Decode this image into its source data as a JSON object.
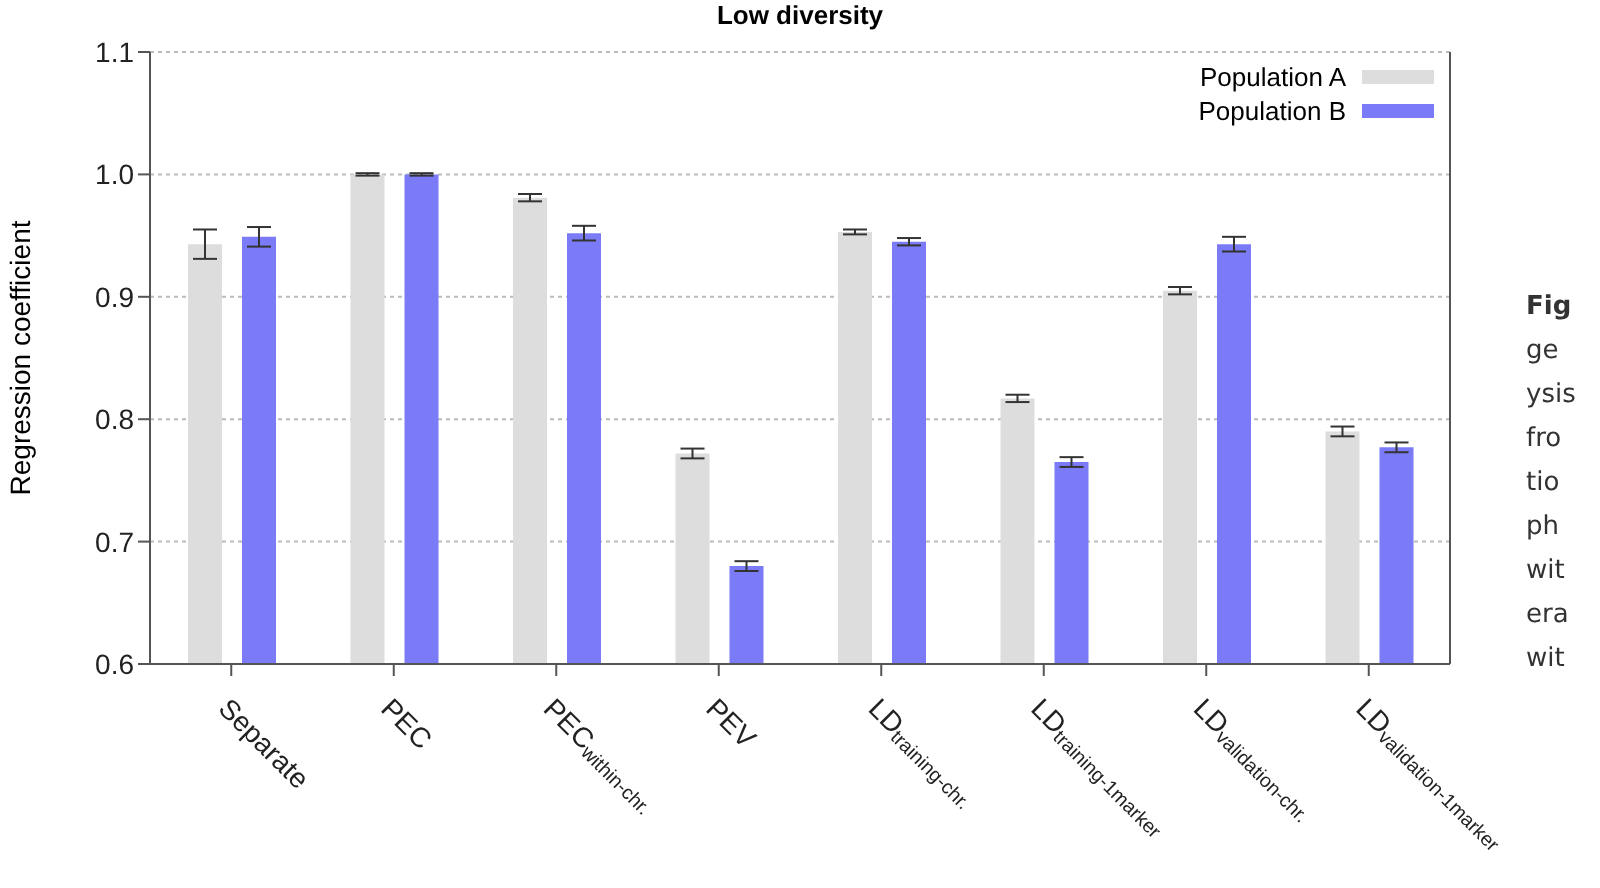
{
  "chart_data": {
    "type": "bar",
    "title": "Low diversity",
    "ylabel": "Regression coefficient",
    "categories": [
      "Separate",
      "PEC",
      "PEC$_{within-chr.}$",
      "PEV",
      "LD$_{training-chr.}$",
      "LD$_{training-1marker}$",
      "LD$_{validation-chr.}$",
      "LD$_{validation-1marker}$"
    ],
    "series": [
      {
        "name": "Population A",
        "color": "#dddddd",
        "values": [
          0.943,
          1.0,
          0.981,
          0.772,
          0.953,
          0.817,
          0.905,
          0.79
        ],
        "errors": [
          0.012,
          0.001,
          0.003,
          0.004,
          0.002,
          0.003,
          0.003,
          0.004
        ]
      },
      {
        "name": "Population B",
        "color": "#7b7bf7",
        "values": [
          0.949,
          1.0,
          0.952,
          0.68,
          0.945,
          0.765,
          0.943,
          0.777
        ],
        "errors": [
          0.008,
          0.001,
          0.006,
          0.004,
          0.003,
          0.004,
          0.006,
          0.004
        ]
      }
    ],
    "ylim": [
      0.6,
      1.1
    ],
    "yticks": [
      0.6,
      0.7,
      0.8,
      0.9,
      {
        "value": 1.0,
        "label": "1.0"
      },
      1.1
    ],
    "grid": "y",
    "legend": "top right",
    "annotations": [
      "Fig",
      "ge",
      "ysis",
      "fro",
      "tio",
      "ph",
      "wit",
      "era",
      "wit"
    ]
  }
}
